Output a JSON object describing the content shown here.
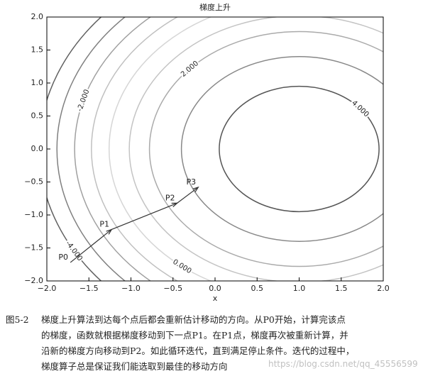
{
  "chart_data": {
    "type": "contour",
    "title": "梯度上升",
    "xlabel": "x",
    "xlim": [
      -2,
      2
    ],
    "ylim": [
      -2,
      2
    ],
    "xticks": [
      {
        "value": -2,
        "label": "−2.0"
      },
      {
        "value": -1.5,
        "label": "−1.5"
      },
      {
        "value": -1,
        "label": "−1.0"
      },
      {
        "value": -0.5,
        "label": "−0.5"
      },
      {
        "value": 0,
        "label": "0.0"
      },
      {
        "value": 0.5,
        "label": "0.5"
      },
      {
        "value": 1,
        "label": "1.0"
      },
      {
        "value": 1.5,
        "label": "1.5"
      },
      {
        "value": 2,
        "label": "2.0"
      }
    ],
    "yticks": [
      {
        "value": -2,
        "label": "−2.0"
      },
      {
        "value": -1.5,
        "label": "−1.5"
      },
      {
        "value": -1,
        "label": "−1.0"
      },
      {
        "value": -0.5,
        "label": "−0.5"
      },
      {
        "value": 0,
        "label": "0.0"
      },
      {
        "value": 0.5,
        "label": "0.5"
      },
      {
        "value": 1,
        "label": "1.0"
      },
      {
        "value": 1.5,
        "label": "1.5"
      },
      {
        "value": 2,
        "label": "2.0"
      }
    ],
    "center": [
      1,
      0
    ],
    "contours": [
      {
        "level": 4,
        "label": "4.000",
        "radius": 0.95,
        "color": "#555555"
      },
      {
        "level": 3,
        "radius": 1.4,
        "color": "#888888"
      },
      {
        "level": 2,
        "label": "2.000",
        "radius": 1.78,
        "color": "#aaaaaa"
      },
      {
        "level": 1,
        "radius": 2.02,
        "color": "#c4c4c4"
      },
      {
        "level": 0,
        "label": "0.000",
        "radius": 2.26,
        "color": "#d6d6d6"
      },
      {
        "level": -1,
        "radius": 2.47,
        "color": "#c0c0c0"
      },
      {
        "level": -2,
        "label": "-2.000",
        "radius": 2.67,
        "color": "#a0a0a0"
      },
      {
        "level": -3,
        "radius": 2.88,
        "color": "#808080"
      },
      {
        "level": -4,
        "label": "-4.000",
        "radius": 3.09,
        "color": "#606060"
      }
    ],
    "points": {
      "names": [
        "P0",
        "P1",
        "P2",
        "P3"
      ],
      "x": [
        -1.72,
        -1.23,
        -0.45,
        -0.2
      ],
      "y": [
        -1.72,
        -1.22,
        -0.82,
        -0.58
      ],
      "color": "#333333"
    }
  },
  "caption": {
    "figure": "图5-2",
    "lines": [
      "梯度上升算法到达每个点后都会重新估计移动的方向。从P0开始，计算完该点",
      "的梯度，函数就根据梯度移动到下一点P1。在P1点，梯度再次被重新计算，并",
      "沿新的梯度方向移动到P2。如此循环迭代，直到满足停止条件。迭代的过程中，",
      "梯度算子总是保证我们能选取到最佳的移动方向"
    ]
  },
  "watermark": "https://blog.csdn.net/qq_45556599"
}
